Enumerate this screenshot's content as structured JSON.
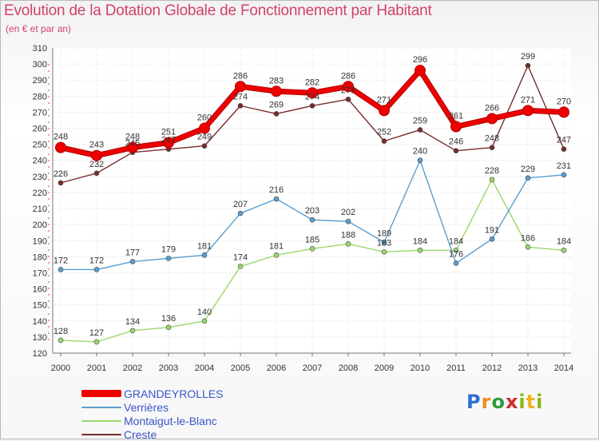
{
  "chart_data": {
    "type": "line",
    "title": "Evolution de la Dotation Globale de Fonctionnement par Habitant",
    "subtitle": "(en € et par an)",
    "x": [
      "2000",
      "2001",
      "2002",
      "2003",
      "2004",
      "2005",
      "2006",
      "2007",
      "2008",
      "2009",
      "2010",
      "2011",
      "2012",
      "2013",
      "2014"
    ],
    "ylim": [
      120,
      310
    ],
    "yticks": [
      120,
      130,
      140,
      150,
      160,
      170,
      180,
      190,
      200,
      210,
      220,
      230,
      240,
      250,
      260,
      270,
      280,
      290,
      300,
      310
    ],
    "grid": true,
    "legend_position": "bottom-left",
    "series": [
      {
        "name": "GRANDEYROLLES",
        "color": "#ee0000",
        "values": [
          248,
          243,
          248,
          251,
          260,
          286,
          283,
          282,
          286,
          271,
          296,
          261,
          266,
          271,
          270
        ]
      },
      {
        "name": "Verrières",
        "color": "#5a9fd1",
        "values": [
          172,
          172,
          177,
          179,
          181,
          207,
          216,
          203,
          202,
          189,
          240,
          176,
          191,
          229,
          231
        ]
      },
      {
        "name": "Montaigut-le-Blanc",
        "color": "#9ad86a",
        "values": [
          128,
          127,
          134,
          136,
          140,
          174,
          181,
          185,
          188,
          183,
          184,
          184,
          228,
          186,
          184
        ]
      },
      {
        "name": "Creste",
        "color": "#7b2a2a",
        "values": [
          226,
          232,
          245,
          247,
          249,
          274,
          269,
          274,
          278,
          252,
          259,
          246,
          248,
          299,
          247
        ]
      }
    ]
  },
  "logo": {
    "letters": [
      "P",
      "r",
      "o",
      "x",
      "i",
      "t",
      "i"
    ]
  }
}
